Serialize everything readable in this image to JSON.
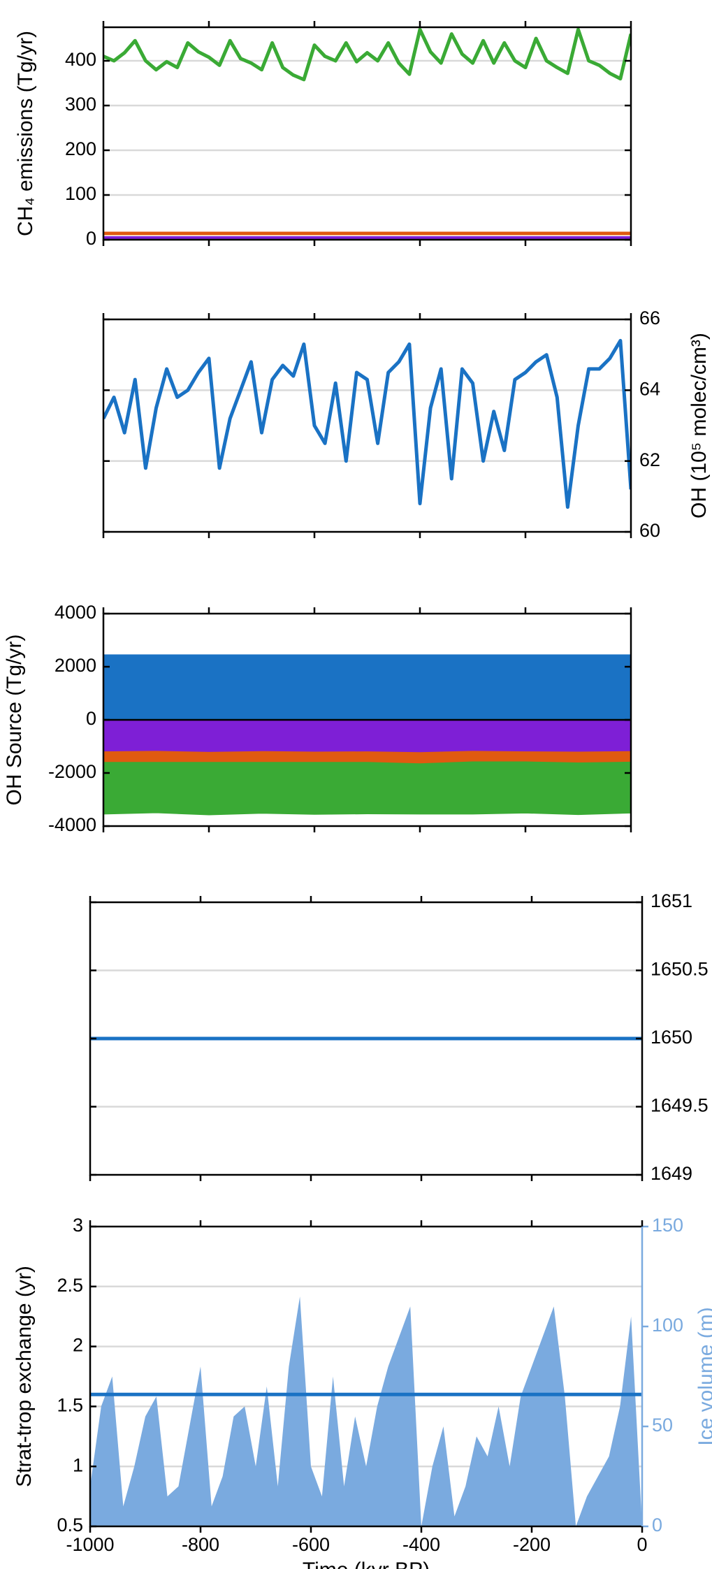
{
  "chart_data": [
    {
      "type": "line",
      "ylabel": "CH₄ emissions  (Tg/yr)",
      "y_axis_side": "left",
      "xtick_labels": false,
      "grid": true,
      "xlim": [
        -1000,
        0
      ],
      "xticks": [
        -1000,
        -800,
        -600,
        -400,
        -200,
        0
      ],
      "ylim": [
        0,
        475
      ],
      "yticks": [
        0,
        100,
        200,
        300,
        400
      ],
      "x": [
        -1000,
        -980,
        -960,
        -940,
        -920,
        -900,
        -880,
        -860,
        -840,
        -820,
        -800,
        -780,
        -760,
        -740,
        -720,
        -700,
        -680,
        -660,
        -640,
        -620,
        -600,
        -580,
        -560,
        -540,
        -520,
        -500,
        -480,
        -460,
        -440,
        -420,
        -400,
        -380,
        -360,
        -340,
        -320,
        -300,
        -280,
        -260,
        -240,
        -220,
        -200,
        -180,
        -160,
        -140,
        -120,
        -100,
        -80,
        -60,
        -40,
        -20,
        0
      ],
      "series": [
        {
          "color": "#3aaa35",
          "values": [
            410,
            400,
            418,
            445,
            400,
            380,
            398,
            385,
            440,
            420,
            408,
            390,
            445,
            405,
            395,
            380,
            440,
            385,
            368,
            358,
            435,
            410,
            400,
            440,
            398,
            418,
            400,
            440,
            395,
            370,
            470,
            420,
            395,
            460,
            415,
            395,
            445,
            395,
            440,
            400,
            385,
            450,
            400,
            385,
            372,
            470,
            400,
            390,
            372,
            360,
            460
          ]
        },
        {
          "color": "#e05a10",
          "x": [
            -1000,
            0
          ],
          "values": [
            14,
            14
          ]
        },
        {
          "color": "#7e1fd6",
          "x": [
            -1000,
            0
          ],
          "values": [
            4,
            4
          ]
        }
      ]
    },
    {
      "type": "line",
      "ylabel": "OH  (10⁵ molec/cm³)",
      "y_axis_side": "right",
      "xtick_labels": false,
      "grid": true,
      "xlim": [
        -1000,
        0
      ],
      "xticks": [
        -1000,
        -800,
        -600,
        -400,
        -200,
        0
      ],
      "ylim": [
        60,
        66
      ],
      "yticks": [
        60,
        62,
        64,
        66
      ],
      "x": [
        -1000,
        -980,
        -960,
        -940,
        -920,
        -900,
        -880,
        -860,
        -840,
        -820,
        -800,
        -780,
        -760,
        -740,
        -720,
        -700,
        -680,
        -660,
        -640,
        -620,
        -600,
        -580,
        -560,
        -540,
        -520,
        -500,
        -480,
        -460,
        -440,
        -420,
        -400,
        -380,
        -360,
        -340,
        -320,
        -300,
        -280,
        -260,
        -240,
        -220,
        -200,
        -180,
        -160,
        -140,
        -120,
        -100,
        -80,
        -60,
        -40,
        -20,
        0
      ],
      "series": [
        {
          "color": "#1a72c4",
          "values": [
            63.2,
            63.8,
            62.8,
            64.3,
            61.8,
            63.5,
            64.6,
            63.8,
            64.0,
            64.5,
            64.9,
            61.8,
            63.2,
            64.0,
            64.8,
            62.8,
            64.3,
            64.7,
            64.4,
            65.3,
            63.0,
            62.5,
            64.2,
            62.0,
            64.5,
            64.3,
            62.5,
            64.5,
            64.8,
            65.3,
            60.8,
            63.5,
            64.6,
            61.5,
            64.6,
            64.2,
            62.0,
            63.4,
            62.3,
            64.3,
            64.5,
            64.8,
            65.0,
            63.8,
            60.7,
            63.0,
            64.6,
            64.6,
            64.9,
            65.4,
            61.2
          ]
        }
      ]
    },
    {
      "type": "stacked_area",
      "ylabel": "OH Source (Tg/yr)",
      "y_axis_side": "left",
      "xtick_labels": false,
      "grid": false,
      "xlim": [
        -1000,
        0
      ],
      "xticks": [
        -1000,
        -800,
        -600,
        -400,
        -200,
        0
      ],
      "ylim": [
        -4000,
        4000
      ],
      "yticks": [
        -4000,
        -2000,
        0,
        2000,
        4000
      ],
      "x": [
        -1000,
        -900,
        -800,
        -700,
        -600,
        -500,
        -400,
        -300,
        -200,
        -100,
        0
      ],
      "series": [
        {
          "color": "#1a72c4",
          "values": [
            2450,
            2450,
            2450,
            2450,
            2450,
            2450,
            2450,
            2450,
            2450,
            2450,
            2450
          ]
        },
        {
          "color": "#7e1fd6",
          "values": [
            -1200,
            -1180,
            -1220,
            -1190,
            -1210,
            -1200,
            -1230,
            -1180,
            -1200,
            -1210,
            -1190
          ]
        },
        {
          "color": "#e05a10",
          "values": [
            -400,
            -420,
            -380,
            -410,
            -390,
            -400,
            -420,
            -400,
            -380,
            -410,
            -400
          ]
        },
        {
          "color": "#3aaa35",
          "values": [
            -1950,
            -1900,
            -1980,
            -1920,
            -1960,
            -1940,
            -1900,
            -1970,
            -1930,
            -1950,
            -1920
          ]
        }
      ]
    },
    {
      "type": "line",
      "y_axis_side": "right",
      "xtick_labels": false,
      "grid": true,
      "xlim": [
        -1000,
        0
      ],
      "xticks": [
        -1000,
        -800,
        -600,
        -400,
        -200,
        0
      ],
      "ylim": [
        1649,
        1651
      ],
      "yticks": [
        1649,
        1649.5,
        1650,
        1650.5,
        1651
      ],
      "x": [
        -1000,
        0
      ],
      "series": [
        {
          "color": "#1a72c4",
          "values": [
            1650,
            1650
          ]
        }
      ]
    },
    {
      "type": "line",
      "ylabel": "Strat-trop exchange (yr)",
      "y2label": "Ice volume (m)",
      "xlabel": "Time (kyr BP)",
      "y_axis_side": "left",
      "xtick_labels": true,
      "grid": true,
      "y2_color": "#7aaadf",
      "xlim": [
        -1000,
        0
      ],
      "xticks": [
        -1000,
        -800,
        -600,
        -400,
        -200,
        0
      ],
      "ylim": [
        0.5,
        3
      ],
      "yticks": [
        0.5,
        1,
        1.5,
        2,
        2.5,
        3
      ],
      "y2lim": [
        0,
        150
      ],
      "y2ticks": [
        0,
        50,
        100,
        150
      ],
      "x": [
        -1000,
        -980,
        -960,
        -940,
        -920,
        -900,
        -880,
        -860,
        -840,
        -820,
        -800,
        -780,
        -760,
        -740,
        -720,
        -700,
        -680,
        -660,
        -640,
        -620,
        -600,
        -580,
        -560,
        -540,
        -520,
        -500,
        -480,
        -460,
        -440,
        -420,
        -400,
        -380,
        -360,
        -340,
        -320,
        -300,
        -280,
        -260,
        -240,
        -220,
        -200,
        -180,
        -160,
        -140,
        -120,
        -100,
        -80,
        -60,
        -40,
        -20,
        0
      ],
      "series": [
        {
          "color": "#7aaadf",
          "type": "area",
          "axis": "y2",
          "values": [
            20,
            60,
            75,
            10,
            30,
            55,
            65,
            15,
            20,
            50,
            80,
            10,
            25,
            55,
            60,
            30,
            70,
            20,
            80,
            115,
            30,
            15,
            75,
            20,
            55,
            30,
            60,
            80,
            95,
            110,
            0,
            30,
            50,
            5,
            20,
            45,
            35,
            60,
            30,
            65,
            80,
            95,
            110,
            65,
            0,
            15,
            25,
            35,
            60,
            105,
            0
          ]
        },
        {
          "color": "#1a72c4",
          "x": [
            -1000,
            0
          ],
          "values": [
            1.6,
            1.6
          ]
        }
      ]
    }
  ]
}
